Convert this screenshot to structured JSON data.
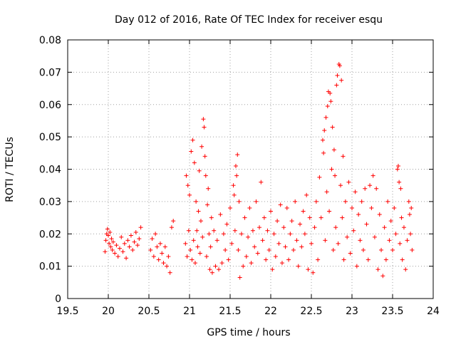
{
  "chart_data": {
    "type": "scatter",
    "title": "Day 012 of 2016, Rate Of TEC Index for receiver esqu",
    "xlabel": "GPS time / hours",
    "ylabel": "ROTI / TECUs",
    "xlim": [
      19.5,
      24
    ],
    "ylim": [
      0,
      0.08
    ],
    "x_ticks": [
      "19.5",
      "20",
      "20.5",
      "21",
      "21.5",
      "22",
      "22.5",
      "23",
      "23.5",
      "24"
    ],
    "y_ticks": [
      "0",
      "0.01",
      "0.02",
      "0.03",
      "0.04",
      "0.05",
      "0.06",
      "0.07",
      "0.08"
    ],
    "grid": true,
    "marker": "+",
    "marker_color": "#ff0000",
    "series": [
      {
        "name": "ROTI",
        "points": [
          [
            19.96,
            0.0145
          ],
          [
            19.97,
            0.018
          ],
          [
            19.98,
            0.02
          ],
          [
            19.99,
            0.0215
          ],
          [
            20.0,
            0.0195
          ],
          [
            20.01,
            0.017
          ],
          [
            20.02,
            0.0205
          ],
          [
            20.03,
            0.016
          ],
          [
            20.04,
            0.0185
          ],
          [
            20.05,
            0.015
          ],
          [
            20.06,
            0.0175
          ],
          [
            20.08,
            0.014
          ],
          [
            20.1,
            0.0165
          ],
          [
            20.12,
            0.013
          ],
          [
            20.14,
            0.0155
          ],
          [
            20.16,
            0.019
          ],
          [
            20.18,
            0.0145
          ],
          [
            20.2,
            0.017
          ],
          [
            20.22,
            0.0125
          ],
          [
            20.24,
            0.018
          ],
          [
            20.26,
            0.016
          ],
          [
            20.28,
            0.0195
          ],
          [
            20.3,
            0.015
          ],
          [
            20.32,
            0.0175
          ],
          [
            20.34,
            0.0205
          ],
          [
            20.36,
            0.0165
          ],
          [
            20.38,
            0.0185
          ],
          [
            20.4,
            0.022
          ],
          [
            20.52,
            0.015
          ],
          [
            20.54,
            0.0185
          ],
          [
            20.56,
            0.013
          ],
          [
            20.58,
            0.02
          ],
          [
            20.6,
            0.016
          ],
          [
            20.62,
            0.012
          ],
          [
            20.64,
            0.017
          ],
          [
            20.66,
            0.014
          ],
          [
            20.68,
            0.011
          ],
          [
            20.7,
            0.016
          ],
          [
            20.72,
            0.01
          ],
          [
            20.74,
            0.013
          ],
          [
            20.76,
            0.008
          ],
          [
            20.78,
            0.022
          ],
          [
            20.8,
            0.024
          ],
          [
            20.95,
            0.017
          ],
          [
            20.96,
            0.038
          ],
          [
            20.97,
            0.013
          ],
          [
            20.98,
            0.035
          ],
          [
            20.99,
            0.021
          ],
          [
            21.0,
            0.032
          ],
          [
            21.01,
            0.015
          ],
          [
            21.02,
            0.0455
          ],
          [
            21.03,
            0.012
          ],
          [
            21.04,
            0.049
          ],
          [
            21.05,
            0.018
          ],
          [
            21.06,
            0.042
          ],
          [
            21.07,
            0.011
          ],
          [
            21.08,
            0.03
          ],
          [
            21.09,
            0.021
          ],
          [
            21.1,
            0.016
          ],
          [
            21.11,
            0.027
          ],
          [
            21.12,
            0.0395
          ],
          [
            21.13,
            0.014
          ],
          [
            21.14,
            0.024
          ],
          [
            21.15,
            0.047
          ],
          [
            21.16,
            0.019
          ],
          [
            21.17,
            0.0555
          ],
          [
            21.18,
            0.053
          ],
          [
            21.19,
            0.044
          ],
          [
            21.2,
            0.038
          ],
          [
            21.21,
            0.013
          ],
          [
            21.22,
            0.029
          ],
          [
            21.23,
            0.034
          ],
          [
            21.24,
            0.02
          ],
          [
            21.25,
            0.009
          ],
          [
            21.26,
            0.016
          ],
          [
            21.27,
            0.025
          ],
          [
            21.28,
            0.008
          ],
          [
            21.3,
            0.021
          ],
          [
            21.32,
            0.01
          ],
          [
            21.34,
            0.018
          ],
          [
            21.36,
            0.009
          ],
          [
            21.38,
            0.026
          ],
          [
            21.4,
            0.011
          ],
          [
            21.42,
            0.02
          ],
          [
            21.44,
            0.015
          ],
          [
            21.46,
            0.023
          ],
          [
            21.48,
            0.012
          ],
          [
            21.5,
            0.028
          ],
          [
            21.52,
            0.017
          ],
          [
            21.54,
            0.035
          ],
          [
            21.55,
            0.032
          ],
          [
            21.56,
            0.021
          ],
          [
            21.57,
            0.041
          ],
          [
            21.58,
            0.038
          ],
          [
            21.59,
            0.0445
          ],
          [
            21.6,
            0.015
          ],
          [
            21.61,
            0.03
          ],
          [
            21.62,
            0.0065
          ],
          [
            21.64,
            0.02
          ],
          [
            21.66,
            0.01
          ],
          [
            21.68,
            0.025
          ],
          [
            21.7,
            0.013
          ],
          [
            21.72,
            0.019
          ],
          [
            21.74,
            0.028
          ],
          [
            21.76,
            0.011
          ],
          [
            21.78,
            0.021
          ],
          [
            21.8,
            0.016
          ],
          [
            21.82,
            0.03
          ],
          [
            21.84,
            0.014
          ],
          [
            21.86,
            0.022
          ],
          [
            21.88,
            0.036
          ],
          [
            21.9,
            0.018
          ],
          [
            21.92,
            0.025
          ],
          [
            21.94,
            0.012
          ],
          [
            21.96,
            0.021
          ],
          [
            21.98,
            0.015
          ],
          [
            22.0,
            0.027
          ],
          [
            22.02,
            0.009
          ],
          [
            22.04,
            0.02
          ],
          [
            22.06,
            0.013
          ],
          [
            22.08,
            0.024
          ],
          [
            22.1,
            0.017
          ],
          [
            22.12,
            0.029
          ],
          [
            22.14,
            0.011
          ],
          [
            22.16,
            0.022
          ],
          [
            22.18,
            0.016
          ],
          [
            22.2,
            0.028
          ],
          [
            22.22,
            0.012
          ],
          [
            22.24,
            0.02
          ],
          [
            22.26,
            0.024
          ],
          [
            22.28,
            0.015
          ],
          [
            22.3,
            0.03
          ],
          [
            22.32,
            0.018
          ],
          [
            22.34,
            0.01
          ],
          [
            22.36,
            0.023
          ],
          [
            22.38,
            0.016
          ],
          [
            22.4,
            0.027
          ],
          [
            22.42,
            0.02
          ],
          [
            22.44,
            0.032
          ],
          [
            22.46,
            0.009
          ],
          [
            22.48,
            0.025
          ],
          [
            22.5,
            0.017
          ],
          [
            22.52,
            0.008
          ],
          [
            22.54,
            0.022
          ],
          [
            22.56,
            0.03
          ],
          [
            22.58,
            0.012
          ],
          [
            22.6,
            0.0375
          ],
          [
            22.62,
            0.025
          ],
          [
            22.64,
            0.049
          ],
          [
            22.65,
            0.045
          ],
          [
            22.66,
            0.052
          ],
          [
            22.67,
            0.018
          ],
          [
            22.68,
            0.056
          ],
          [
            22.69,
            0.033
          ],
          [
            22.7,
            0.0595
          ],
          [
            22.71,
            0.064
          ],
          [
            22.72,
            0.027
          ],
          [
            22.73,
            0.0635
          ],
          [
            22.74,
            0.061
          ],
          [
            22.75,
            0.04
          ],
          [
            22.76,
            0.053
          ],
          [
            22.77,
            0.015
          ],
          [
            22.78,
            0.046
          ],
          [
            22.79,
            0.038
          ],
          [
            22.8,
            0.022
          ],
          [
            22.81,
            0.066
          ],
          [
            22.82,
            0.069
          ],
          [
            22.83,
            0.017
          ],
          [
            22.84,
            0.0725
          ],
          [
            22.85,
            0.072
          ],
          [
            22.86,
            0.035
          ],
          [
            22.87,
            0.0675
          ],
          [
            22.88,
            0.025
          ],
          [
            22.89,
            0.044
          ],
          [
            22.9,
            0.012
          ],
          [
            22.92,
            0.03
          ],
          [
            22.94,
            0.019
          ],
          [
            22.96,
            0.036
          ],
          [
            22.98,
            0.014
          ],
          [
            23.0,
            0.028
          ],
          [
            23.02,
            0.021
          ],
          [
            23.04,
            0.033
          ],
          [
            23.06,
            0.01
          ],
          [
            23.08,
            0.026
          ],
          [
            23.1,
            0.018
          ],
          [
            23.12,
            0.03
          ],
          [
            23.14,
            0.015
          ],
          [
            23.16,
            0.034
          ],
          [
            23.18,
            0.023
          ],
          [
            23.2,
            0.012
          ],
          [
            23.22,
            0.035
          ],
          [
            23.24,
            0.028
          ],
          [
            23.26,
            0.038
          ],
          [
            23.28,
            0.019
          ],
          [
            23.3,
            0.034
          ],
          [
            23.32,
            0.009
          ],
          [
            23.34,
            0.026
          ],
          [
            23.36,
            0.015
          ],
          [
            23.38,
            0.007
          ],
          [
            23.4,
            0.022
          ],
          [
            23.42,
            0.012
          ],
          [
            23.44,
            0.03
          ],
          [
            23.46,
            0.018
          ],
          [
            23.48,
            0.024
          ],
          [
            23.5,
            0.015
          ],
          [
            23.52,
            0.028
          ],
          [
            23.54,
            0.02
          ],
          [
            23.56,
            0.04
          ],
          [
            23.57,
            0.041
          ],
          [
            23.58,
            0.036
          ],
          [
            23.59,
            0.017
          ],
          [
            23.6,
            0.034
          ],
          [
            23.61,
            0.025
          ],
          [
            23.62,
            0.012
          ],
          [
            23.64,
            0.022
          ],
          [
            23.66,
            0.009
          ],
          [
            23.68,
            0.018
          ],
          [
            23.7,
            0.03
          ],
          [
            23.71,
            0.026
          ],
          [
            23.72,
            0.02
          ],
          [
            23.73,
            0.028
          ],
          [
            23.74,
            0.015
          ]
        ]
      }
    ]
  }
}
